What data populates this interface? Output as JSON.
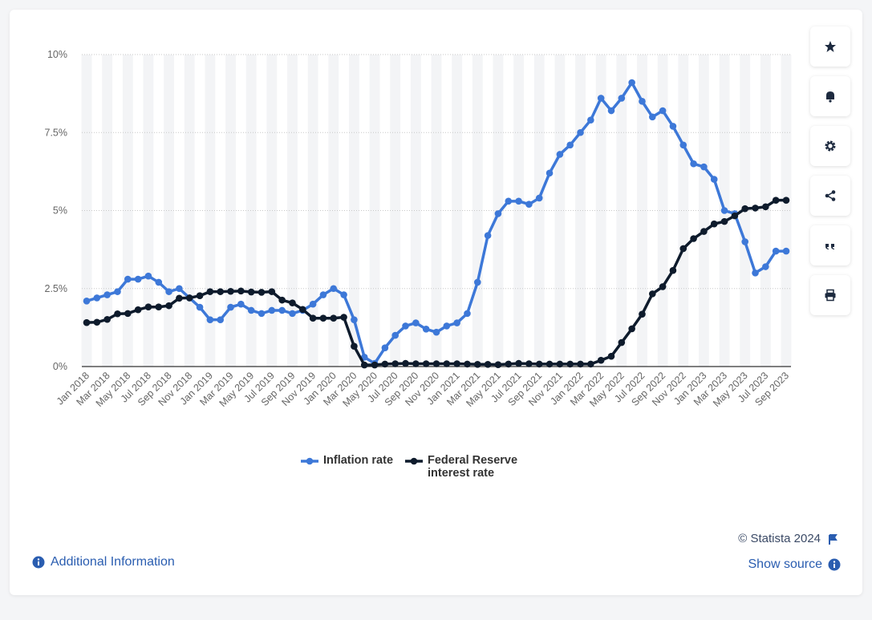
{
  "chart_data": {
    "type": "line",
    "categories": [
      "Jan 2018",
      null,
      "Mar 2018",
      null,
      "May 2018",
      null,
      "Jul 2018",
      null,
      "Sep 2018",
      null,
      "Nov 2018",
      null,
      "Jan 2019",
      null,
      "Mar 2019",
      null,
      "May 2019",
      null,
      "Jul 2019",
      null,
      "Sep 2019",
      null,
      "Nov 2019",
      null,
      "Jan 2020",
      null,
      "Mar 2020",
      null,
      "May 2020",
      null,
      "Jul 2020",
      null,
      "Sep 2020",
      null,
      "Nov 2020",
      null,
      "Jan 2021",
      null,
      "Mar 2021",
      null,
      "May 2021",
      null,
      "Jul 2021",
      null,
      "Sep 2021",
      null,
      "Nov 2021",
      null,
      "Jan 2022",
      null,
      "Mar 2022",
      null,
      "May 2022",
      null,
      "Jul 2022",
      null,
      "Sep 2022",
      null,
      "Nov 2022",
      null,
      "Jan 2023",
      null,
      "Mar 2023",
      null,
      "May 2023",
      null,
      "Jul 2023",
      null,
      "Sep 2023"
    ],
    "series": [
      {
        "name": "Inflation rate",
        "color": "#3d78d8",
        "values": [
          2.1,
          2.2,
          2.3,
          2.4,
          2.8,
          2.8,
          2.9,
          2.7,
          2.4,
          2.5,
          2.2,
          1.9,
          1.5,
          1.5,
          1.9,
          2.0,
          1.8,
          1.7,
          1.8,
          1.8,
          1.7,
          1.8,
          2.0,
          2.3,
          2.5,
          2.3,
          1.5,
          0.3,
          0.1,
          0.6,
          1.0,
          1.3,
          1.4,
          1.2,
          1.1,
          1.3,
          1.4,
          1.7,
          2.7,
          4.2,
          4.9,
          5.3,
          5.3,
          5.2,
          5.4,
          6.2,
          6.8,
          7.1,
          7.5,
          7.9,
          8.6,
          8.2,
          8.6,
          9.1,
          8.5,
          8.0,
          8.2,
          7.7,
          7.1,
          6.5,
          6.4,
          6.0,
          5.0,
          4.9,
          4.0,
          3.0,
          3.2,
          3.7,
          3.7
        ]
      },
      {
        "name": "Federal Reserve interest rate",
        "color": "#0e1b2c",
        "values": [
          1.41,
          1.42,
          1.51,
          1.69,
          1.7,
          1.82,
          1.91,
          1.91,
          1.95,
          2.19,
          2.2,
          2.27,
          2.4,
          2.4,
          2.41,
          2.42,
          2.39,
          2.38,
          2.4,
          2.13,
          2.04,
          1.83,
          1.55,
          1.55,
          1.55,
          1.58,
          0.65,
          0.05,
          0.05,
          0.08,
          0.09,
          0.1,
          0.09,
          0.09,
          0.09,
          0.09,
          0.09,
          0.08,
          0.07,
          0.07,
          0.06,
          0.08,
          0.1,
          0.09,
          0.08,
          0.08,
          0.08,
          0.08,
          0.08,
          0.08,
          0.2,
          0.33,
          0.77,
          1.21,
          1.68,
          2.33,
          2.56,
          3.08,
          3.78,
          4.1,
          4.33,
          4.57,
          4.65,
          4.83,
          5.06,
          5.08,
          5.12,
          5.33,
          5.33
        ]
      }
    ],
    "ylim": [
      0,
      10
    ],
    "yticks": [
      {
        "value": 0,
        "label": "0%"
      },
      {
        "value": 2.5,
        "label": "2.5%"
      },
      {
        "value": 5,
        "label": "5%"
      },
      {
        "value": 7.5,
        "label": "7.5%"
      },
      {
        "value": 10,
        "label": "10%"
      }
    ],
    "grid": true,
    "legend": "bottom"
  },
  "ui": {
    "copyright": "© Statista 2024",
    "show_source": "Show source",
    "additional_info": "Additional Information"
  }
}
